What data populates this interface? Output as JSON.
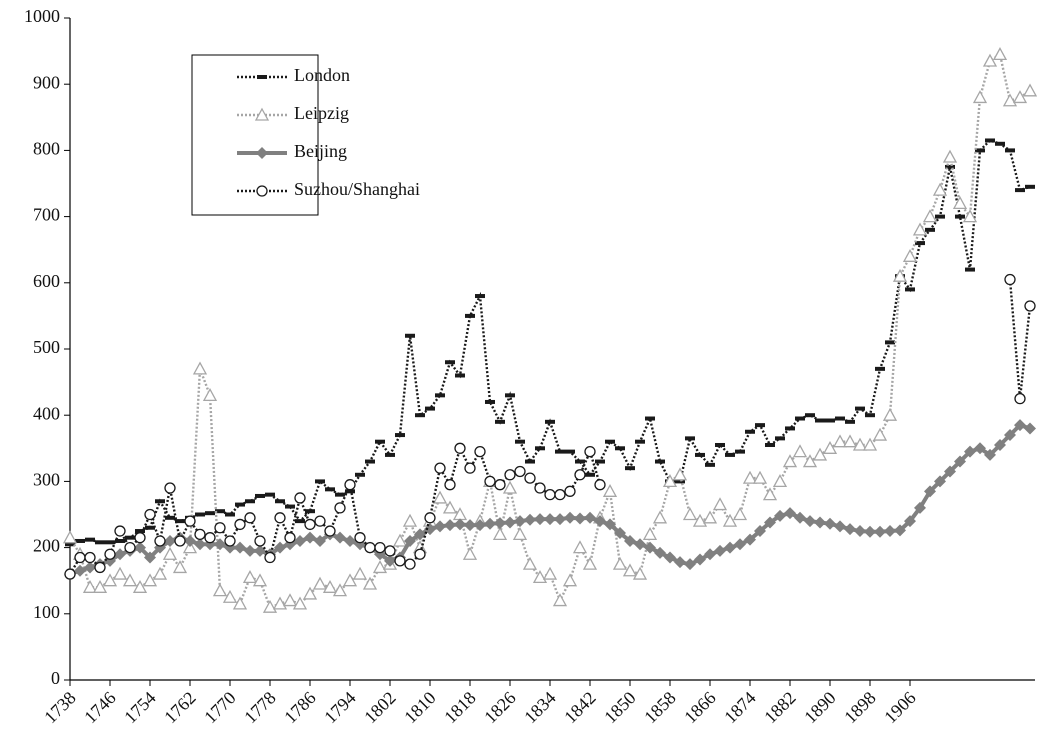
{
  "chart_data": {
    "type": "line",
    "x": [
      1738,
      1740,
      1742,
      1744,
      1746,
      1748,
      1750,
      1752,
      1754,
      1756,
      1758,
      1760,
      1762,
      1764,
      1766,
      1768,
      1770,
      1772,
      1774,
      1776,
      1778,
      1780,
      1782,
      1784,
      1786,
      1788,
      1790,
      1792,
      1794,
      1796,
      1798,
      1800,
      1802,
      1804,
      1806,
      1808,
      1810,
      1812,
      1814,
      1816,
      1818,
      1820,
      1822,
      1824,
      1826,
      1828,
      1830,
      1832,
      1834,
      1836,
      1838,
      1840,
      1842,
      1844,
      1846,
      1848,
      1850,
      1852,
      1854,
      1856,
      1858,
      1860,
      1862,
      1864,
      1866,
      1868,
      1870,
      1872,
      1874,
      1876,
      1878,
      1880,
      1882,
      1884,
      1886,
      1888,
      1890,
      1892,
      1894,
      1896,
      1898,
      1900,
      1902,
      1904,
      1906,
      1908,
      1910,
      1912,
      1914,
      1916,
      1918,
      1920,
      1922,
      1924,
      1926,
      1928,
      1930
    ],
    "series": [
      {
        "name": "London",
        "color": "#1a1a1a",
        "line": "dotted",
        "marker": "dash",
        "values": [
          205,
          210,
          212,
          208,
          208,
          210,
          215,
          225,
          230,
          270,
          245,
          240,
          245,
          250,
          252,
          255,
          250,
          265,
          270,
          278,
          280,
          270,
          262,
          240,
          255,
          300,
          288,
          280,
          285,
          310,
          330,
          360,
          340,
          370,
          520,
          400,
          410,
          430,
          480,
          460,
          550,
          580,
          420,
          390,
          430,
          360,
          330,
          350,
          390,
          345,
          345,
          330,
          310,
          330,
          360,
          350,
          320,
          360,
          395,
          330,
          300,
          300,
          365,
          340,
          325,
          355,
          340,
          345,
          375,
          385,
          355,
          365,
          380,
          395,
          400,
          392,
          392,
          395,
          390,
          410,
          400,
          470,
          510,
          610,
          590,
          660,
          680,
          700,
          775,
          700,
          620,
          800,
          815,
          810,
          800,
          740,
          745
        ]
      },
      {
        "name": "Leipzig",
        "color": "#a6a6a6",
        "line": "dotted",
        "marker": "triangle",
        "values": [
          215,
          190,
          140,
          140,
          150,
          160,
          150,
          140,
          150,
          160,
          190,
          170,
          200,
          470,
          430,
          135,
          125,
          115,
          155,
          150,
          110,
          115,
          120,
          115,
          130,
          145,
          140,
          135,
          150,
          160,
          145,
          170,
          175,
          210,
          240,
          200,
          240,
          275,
          260,
          250,
          190,
          240,
          300,
          220,
          290,
          220,
          175,
          155,
          160,
          120,
          150,
          200,
          175,
          245,
          285,
          175,
          165,
          160,
          220,
          245,
          300,
          310,
          250,
          240,
          245,
          265,
          240,
          250,
          305,
          305,
          280,
          300,
          330,
          345,
          330,
          340,
          350,
          360,
          360,
          355,
          355,
          370,
          400,
          610,
          640,
          680,
          700,
          740,
          790,
          720,
          700,
          880,
          935,
          945,
          875,
          880,
          890
        ]
      },
      {
        "name": "Beijing",
        "color": "#808080",
        "line": "solid",
        "marker": "diamond",
        "values": [
          160,
          165,
          170,
          175,
          180,
          190,
          195,
          200,
          185,
          200,
          210,
          215,
          210,
          205,
          205,
          205,
          200,
          200,
          195,
          195,
          190,
          200,
          205,
          210,
          215,
          210,
          220,
          215,
          210,
          205,
          200,
          190,
          180,
          185,
          210,
          220,
          228,
          232,
          234,
          235,
          234,
          234,
          236,
          237,
          238,
          240,
          242,
          243,
          243,
          243,
          245,
          244,
          245,
          240,
          235,
          222,
          210,
          205,
          200,
          192,
          185,
          178,
          175,
          182,
          190,
          195,
          200,
          205,
          212,
          225,
          238,
          248,
          252,
          245,
          240,
          238,
          236,
          232,
          228,
          225,
          224,
          224,
          225,
          226,
          240,
          260,
          285,
          300,
          315,
          330,
          345,
          350,
          340,
          355,
          370,
          385,
          380
        ]
      },
      {
        "name": "Suzhou/Shanghai",
        "color": "#1a1a1a",
        "line": "dotted",
        "marker": "circle",
        "values": [
          160,
          185,
          185,
          170,
          190,
          225,
          200,
          215,
          250,
          210,
          290,
          210,
          240,
          220,
          215,
          230,
          210,
          235,
          245,
          210,
          185,
          245,
          215,
          275,
          235,
          240,
          225,
          260,
          295,
          215,
          200,
          200,
          195,
          180,
          175,
          190,
          245,
          320,
          295,
          350,
          320,
          345,
          300,
          295,
          310,
          315,
          305,
          290,
          280,
          280,
          285,
          310,
          345,
          295,
          null,
          null,
          null,
          null,
          null,
          null,
          null,
          null,
          null,
          null,
          null,
          null,
          null,
          null,
          null,
          null,
          null,
          null,
          null,
          null,
          null,
          null,
          null,
          null,
          null,
          null,
          null,
          null,
          null,
          null,
          null,
          null,
          null,
          null,
          null,
          null,
          null,
          null,
          null,
          null,
          605,
          425,
          565
        ]
      }
    ],
    "xlim": [
      1738,
      1931
    ],
    "xticks": [
      1738,
      1746,
      1754,
      1762,
      1770,
      1778,
      1786,
      1794,
      1802,
      1810,
      1818,
      1826,
      1834,
      1842,
      1850,
      1858,
      1866,
      1874,
      1882,
      1890,
      1898,
      1906
    ],
    "ylim": [
      0,
      1000
    ],
    "yticks": [
      0,
      100,
      200,
      300,
      400,
      500,
      600,
      700,
      800,
      900,
      1000
    ],
    "grid": false,
    "legend": "upper left"
  }
}
